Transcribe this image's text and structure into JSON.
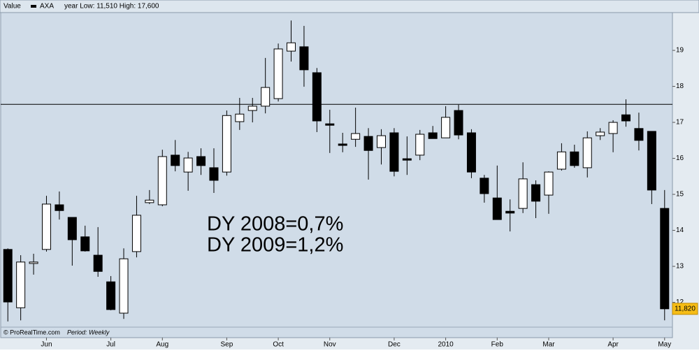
{
  "chart_data": {
    "type": "candlestick",
    "header": {
      "label": "Value",
      "symbol": "AXA",
      "range": "year Low: 11,510 High: 17,600"
    },
    "footer": {
      "source": "© ProRealTime.com",
      "period": "Period: Weekly"
    },
    "annotations": [
      "DY 2008=0,7%",
      "DY 2009=1,2%"
    ],
    "categories": [
      null,
      null,
      null,
      "Jun",
      null,
      null,
      null,
      null,
      "Jul",
      null,
      null,
      null,
      "Aug",
      null,
      null,
      null,
      null,
      "Sep",
      null,
      null,
      null,
      "Oct",
      null,
      null,
      null,
      "Nov",
      null,
      null,
      null,
      null,
      "Dec",
      null,
      null,
      null,
      "2010",
      null,
      null,
      null,
      "Feb",
      null,
      null,
      null,
      "Mar",
      null,
      null,
      null,
      null,
      "Apr",
      null,
      null,
      null,
      "May"
    ],
    "series": [
      {
        "name": "AXA",
        "up_color": "#ffffff",
        "down_color": "#000000",
        "open": [
          13.47,
          11.85,
          13.08,
          13.47,
          14.71,
          14.36,
          13.82,
          13.31,
          12.57,
          11.7,
          13.41,
          14.77,
          14.71,
          16.09,
          15.62,
          16.05,
          15.74,
          15.62,
          17.02,
          17.33,
          17.45,
          17.66,
          18.98,
          19.1,
          18.38,
          16.96,
          16.4,
          16.53,
          16.61,
          16.3,
          16.71,
          15.99,
          16.09,
          16.71,
          16.57,
          17.33,
          16.71,
          15.45,
          14.9,
          14.53,
          14.61,
          15.27,
          14.98,
          15.7,
          16.18,
          15.74,
          16.63,
          16.69,
          17.21,
          16.83,
          16.75,
          14.61
        ],
        "high": [
          13.5,
          13.31,
          13.35,
          14.96,
          15.08,
          14.36,
          14.13,
          14.09,
          12.73,
          13.5,
          14.96,
          15.12,
          16.24,
          16.51,
          16.18,
          16.28,
          16.28,
          17.33,
          17.68,
          17.68,
          18.79,
          19.19,
          19.83,
          19.68,
          18.51,
          17.35,
          16.71,
          17.41,
          16.84,
          16.81,
          16.84,
          16.61,
          16.79,
          16.9,
          17.45,
          17.49,
          16.81,
          15.54,
          15.8,
          14.86,
          15.89,
          15.39,
          15.64,
          16.42,
          16.38,
          16.75,
          16.84,
          17.06,
          17.64,
          17.27,
          16.75,
          15.12
        ],
        "low": [
          11.47,
          11.5,
          12.77,
          13.41,
          14.3,
          13.02,
          13.41,
          12.71,
          11.78,
          11.54,
          13.25,
          14.73,
          14.67,
          15.64,
          15.1,
          15.54,
          15.04,
          15.52,
          16.79,
          17.0,
          17.25,
          17.58,
          18.69,
          17.99,
          16.73,
          16.15,
          16.17,
          16.32,
          15.41,
          15.83,
          15.5,
          15.54,
          15.95,
          16.55,
          16.57,
          16.53,
          15.45,
          14.77,
          14.3,
          13.97,
          14.48,
          14.34,
          14.46,
          15.66,
          15.74,
          15.47,
          16.51,
          16.17,
          16.88,
          16.22,
          14.73,
          11.5
        ],
        "close": [
          12.01,
          13.12,
          13.12,
          14.73,
          14.55,
          13.74,
          13.43,
          12.86,
          11.8,
          13.21,
          14.42,
          14.84,
          16.05,
          15.8,
          16.01,
          15.8,
          15.39,
          17.19,
          17.23,
          17.45,
          17.97,
          19.04,
          19.21,
          18.46,
          17.04,
          16.92,
          16.36,
          16.69,
          16.22,
          16.63,
          15.64,
          15.95,
          16.67,
          16.55,
          17.14,
          16.65,
          15.62,
          15.02,
          14.3,
          14.48,
          15.43,
          14.81,
          15.62,
          16.18,
          15.8,
          16.57,
          16.73,
          17.0,
          17.04,
          16.5,
          15.12,
          11.82
        ]
      }
    ],
    "reference_line": 17.5,
    "last_price": {
      "value": 11.82,
      "label": "11,820"
    },
    "ylim": [
      11.02,
      20.05
    ],
    "yticks": [
      12,
      13,
      14,
      15,
      16,
      17,
      18,
      19
    ],
    "grid": false
  }
}
